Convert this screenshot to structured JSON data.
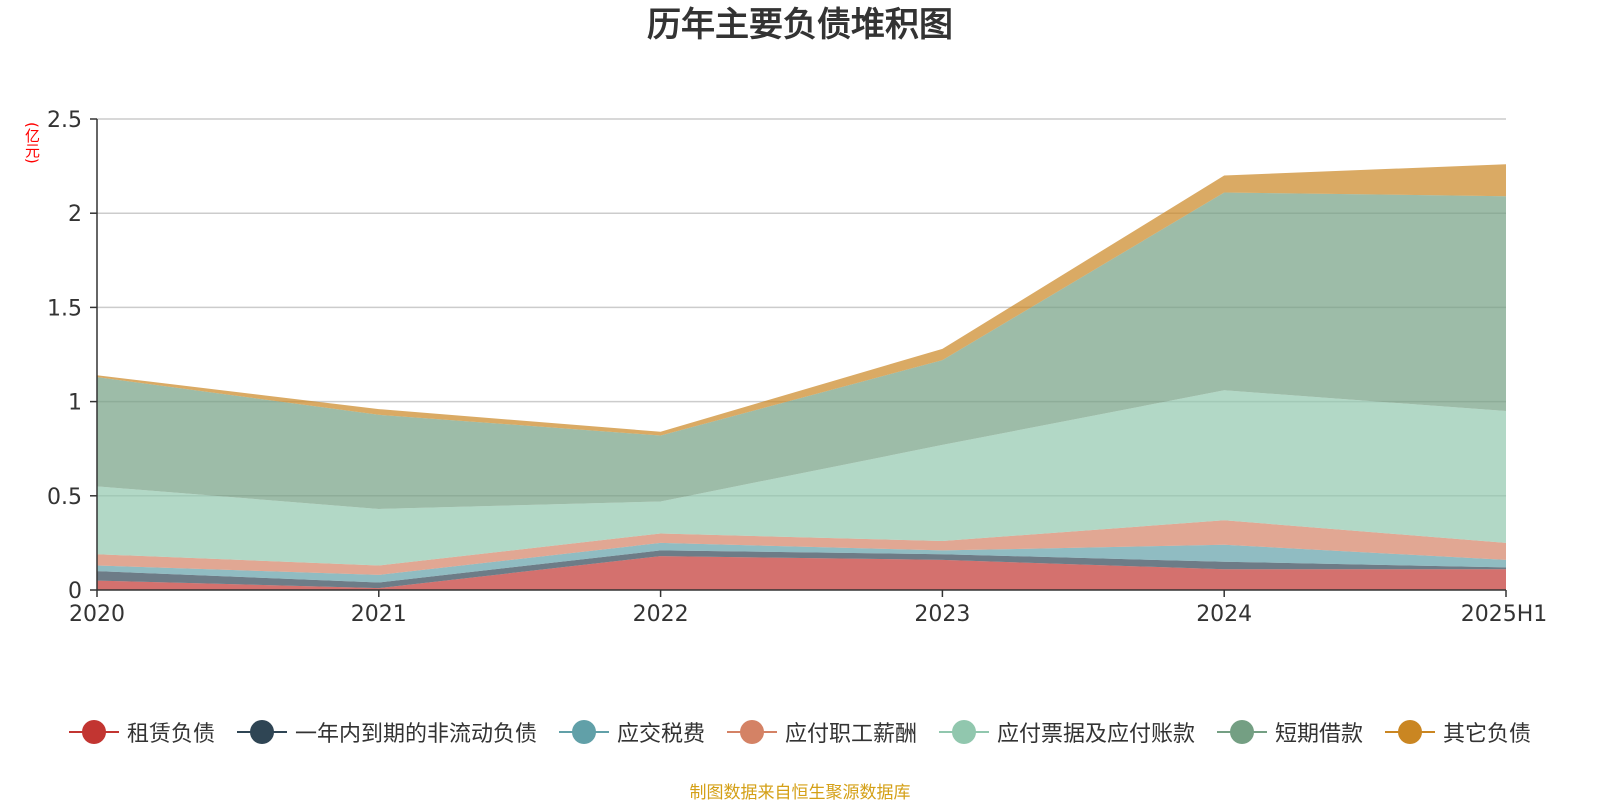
{
  "title": "历年主要负债堆积图",
  "unit": "(亿元)",
  "source": "制图数据来自恒生聚源数据库",
  "chart_data": {
    "type": "area",
    "stacked": true,
    "title": "历年主要负债堆积图",
    "ylabel": "(亿元)",
    "categories": [
      "2020",
      "2021",
      "2022",
      "2023",
      "2024",
      "2025H1"
    ],
    "ylim": [
      0,
      2.5
    ],
    "yticks": [
      "0",
      "0.5",
      "1",
      "1.5",
      "2",
      "2.5"
    ],
    "grid": true,
    "legend_position": "bottom",
    "series": [
      {
        "name": "租赁负债",
        "color": "#c23531",
        "values": [
          0.05,
          0.01,
          0.18,
          0.16,
          0.11,
          0.11
        ]
      },
      {
        "name": "一年内到期的非流动负债",
        "color": "#2f4554",
        "values": [
          0.05,
          0.03,
          0.03,
          0.03,
          0.04,
          0.01
        ]
      },
      {
        "name": "应交税费",
        "color": "#61a0a8",
        "values": [
          0.03,
          0.04,
          0.04,
          0.02,
          0.09,
          0.04
        ]
      },
      {
        "name": "应付职工薪酬",
        "color": "#d48265",
        "values": [
          0.06,
          0.05,
          0.05,
          0.05,
          0.13,
          0.09
        ]
      },
      {
        "name": "应付票据及应付账款",
        "color": "#91c7ae",
        "values": [
          0.36,
          0.3,
          0.17,
          0.51,
          0.69,
          0.7
        ]
      },
      {
        "name": "短期借款",
        "color": "#749f83",
        "values": [
          0.58,
          0.5,
          0.35,
          0.45,
          1.05,
          1.14
        ]
      },
      {
        "name": "其它负债",
        "color": "#ca8622",
        "values": [
          0.01,
          0.03,
          0.02,
          0.06,
          0.09,
          0.17
        ]
      }
    ]
  }
}
